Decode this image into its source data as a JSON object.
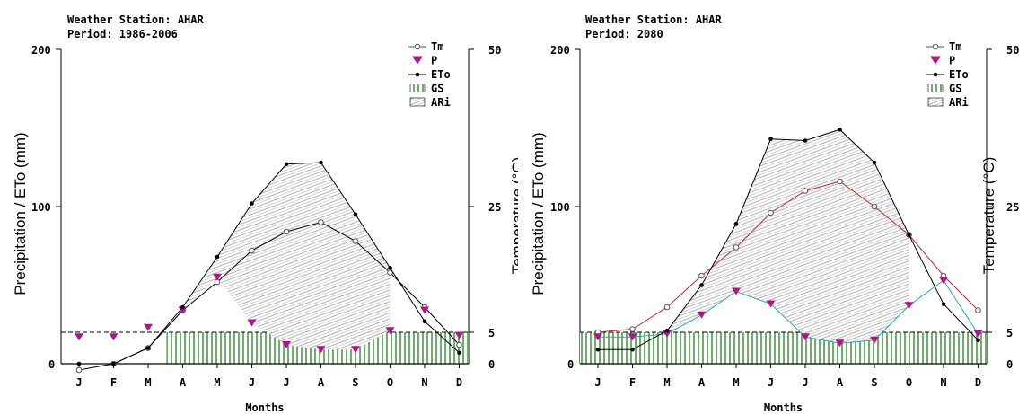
{
  "chart_data": [
    {
      "type": "line",
      "station_label": "Weather Station: AHAR",
      "period_label": "Period: 1986-2006",
      "title": "",
      "xlabel": "Months",
      "ylabel": "Precipitation / ETo (mm)",
      "y2label": "Temperature (°C)",
      "categories": [
        "J",
        "F",
        "M",
        "A",
        "M",
        "J",
        "J",
        "A",
        "S",
        "O",
        "N",
        "D"
      ],
      "ylim": [
        0,
        200
      ],
      "y2lim": [
        0,
        50
      ],
      "y_ticks": [
        "0",
        "100",
        "200"
      ],
      "y2_ticks": [
        "0",
        "5",
        "25",
        "50"
      ],
      "gs_level": 20,
      "gs_start": 3,
      "legend_position": "top-right",
      "legend": [
        "Tm",
        "P",
        "ETo",
        "GS",
        "ARi"
      ],
      "series": [
        {
          "name": "Tm",
          "values": [
            -1,
            0,
            2.5,
            8.5,
            13,
            18,
            21,
            22.5,
            19.5,
            14.5,
            9,
            3
          ],
          "axis": "right",
          "color": "#000000"
        },
        {
          "name": "P",
          "values": [
            17,
            17,
            23,
            34,
            55,
            26,
            12,
            9,
            9,
            21,
            34,
            18
          ],
          "axis": "left",
          "color": "#b0148c"
        },
        {
          "name": "ETo",
          "values": [
            0,
            0,
            10,
            36,
            68,
            102,
            127,
            128,
            95,
            61,
            27,
            7
          ],
          "axis": "left",
          "color": "#000000"
        }
      ]
    },
    {
      "type": "line",
      "station_label": "Weather Station: AHAR",
      "period_label": "Period: 2080",
      "title": "",
      "xlabel": "Months",
      "ylabel": "Precipitation / ETo (mm)",
      "y2label": "Temperature (°C)",
      "categories": [
        "J",
        "F",
        "M",
        "A",
        "M",
        "J",
        "J",
        "A",
        "S",
        "O",
        "N",
        "D"
      ],
      "ylim": [
        0,
        200
      ],
      "y2lim": [
        0,
        50
      ],
      "y_ticks": [
        "0",
        "100",
        "200"
      ],
      "y2_ticks": [
        "0",
        "5",
        "25",
        "50"
      ],
      "gs_level": 20,
      "gs_start": 0,
      "legend_position": "top-right",
      "legend": [
        "Tm",
        "P",
        "ETo",
        "GS",
        "ARi"
      ],
      "series": [
        {
          "name": "Tm",
          "values": [
            5,
            5.5,
            9,
            14,
            18.5,
            24,
            27.5,
            29,
            25,
            20.5,
            14,
            8.5
          ],
          "axis": "right",
          "color": "#cc2222"
        },
        {
          "name": "P",
          "values": [
            17,
            17,
            19,
            31,
            46,
            38,
            17,
            13,
            15,
            37,
            53,
            19
          ],
          "axis": "left",
          "color": "#b0148c"
        },
        {
          "name": "ETo",
          "values": [
            9,
            9,
            21,
            50,
            89,
            143,
            142,
            149,
            128,
            82,
            38,
            15
          ],
          "axis": "left",
          "color": "#000000"
        }
      ]
    }
  ]
}
